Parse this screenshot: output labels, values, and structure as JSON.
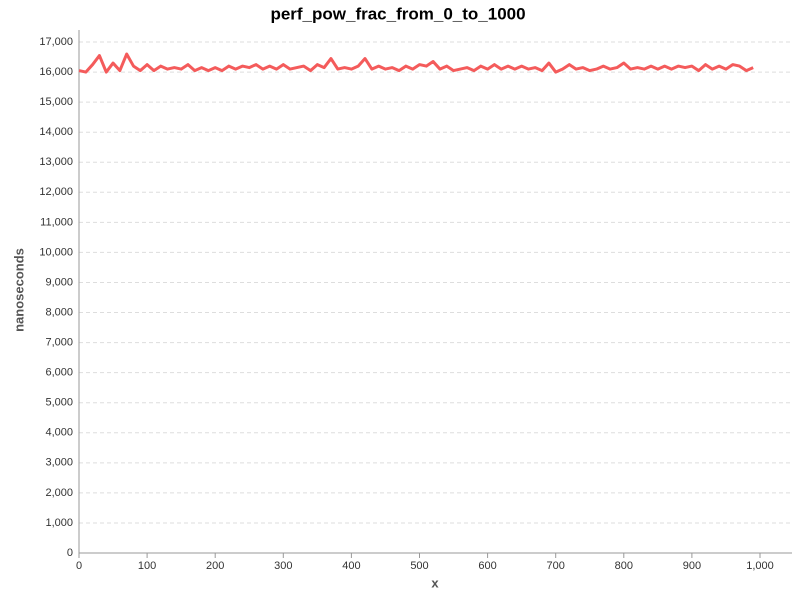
{
  "chart_data": {
    "type": "line",
    "title": "perf_pow_frac_from_0_to_1000",
    "x_label": "x",
    "y_label": "nanoseconds",
    "color": "#f45b5b",
    "grid": true,
    "x": [
      0,
      10,
      20,
      30,
      40,
      50,
      60,
      70,
      80,
      90,
      100,
      110,
      120,
      130,
      140,
      150,
      160,
      170,
      180,
      190,
      200,
      210,
      220,
      230,
      240,
      250,
      260,
      270,
      280,
      290,
      300,
      310,
      320,
      330,
      340,
      350,
      360,
      370,
      380,
      390,
      400,
      410,
      420,
      430,
      440,
      450,
      460,
      470,
      480,
      490,
      500,
      510,
      520,
      530,
      540,
      550,
      560,
      570,
      580,
      590,
      600,
      610,
      620,
      630,
      640,
      650,
      660,
      670,
      680,
      690,
      700,
      710,
      720,
      730,
      740,
      750,
      760,
      770,
      780,
      790,
      800,
      810,
      820,
      830,
      840,
      850,
      860,
      870,
      880,
      890,
      900,
      910,
      920,
      930,
      940,
      950,
      960,
      970,
      980,
      990
    ],
    "values": [
      16050,
      16000,
      16250,
      16550,
      16000,
      16300,
      16050,
      16600,
      16200,
      16050,
      16250,
      16050,
      16200,
      16100,
      16150,
      16100,
      16250,
      16050,
      16150,
      16050,
      16150,
      16050,
      16200,
      16100,
      16200,
      16150,
      16250,
      16100,
      16200,
      16100,
      16250,
      16100,
      16150,
      16200,
      16050,
      16250,
      16150,
      16450,
      16100,
      16150,
      16100,
      16200,
      16450,
      16100,
      16200,
      16100,
      16150,
      16050,
      16200,
      16100,
      16250,
      16200,
      16350,
      16100,
      16200,
      16050,
      16100,
      16150,
      16050,
      16200,
      16100,
      16250,
      16100,
      16200,
      16100,
      16200,
      16100,
      16150,
      16050,
      16300,
      16000,
      16100,
      16250,
      16100,
      16150,
      16050,
      16100,
      16200,
      16100,
      16150,
      16300,
      16100,
      16150,
      16100,
      16200,
      16100,
      16200,
      16100,
      16200,
      16150,
      16200,
      16050,
      16250,
      16100,
      16200,
      16100,
      16250,
      16200,
      16050,
      16150
    ],
    "xlim": [
      0,
      1047
    ],
    "ylim": [
      0,
      17400
    ],
    "xticks": [
      0,
      100,
      200,
      300,
      400,
      500,
      600,
      700,
      800,
      900,
      {
        "value": 1000,
        "label": "1,000"
      }
    ],
    "yticks": [
      0,
      {
        "value": 1000,
        "label": "1,000"
      },
      {
        "value": 2000,
        "label": "2,000"
      },
      {
        "value": 3000,
        "label": "3,000"
      },
      {
        "value": 4000,
        "label": "4,000"
      },
      {
        "value": 5000,
        "label": "5,000"
      },
      {
        "value": 6000,
        "label": "6,000"
      },
      {
        "value": 7000,
        "label": "7,000"
      },
      {
        "value": 8000,
        "label": "8,000"
      },
      {
        "value": 9000,
        "label": "9,000"
      },
      {
        "value": 10000,
        "label": "10,000"
      },
      {
        "value": 11000,
        "label": "11,000"
      },
      {
        "value": 12000,
        "label": "12,000"
      },
      {
        "value": 13000,
        "label": "13,000"
      },
      {
        "value": 14000,
        "label": "14,000"
      },
      {
        "value": 15000,
        "label": "15,000"
      },
      {
        "value": 16000,
        "label": "16,000"
      },
      {
        "value": 17000,
        "label": "17,000"
      }
    ]
  }
}
